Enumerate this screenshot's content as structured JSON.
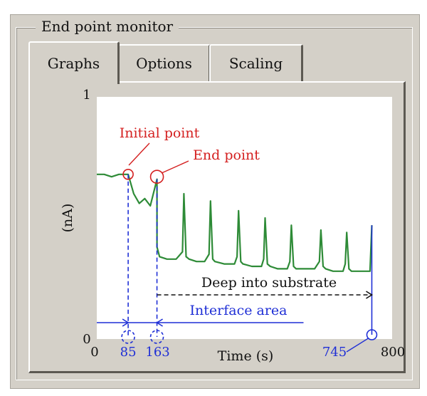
{
  "window": {
    "group_title": "End point monitor"
  },
  "tabs": [
    {
      "label": "Graphs",
      "active": true
    },
    {
      "label": "Options",
      "active": false
    },
    {
      "label": "Scaling",
      "active": false
    }
  ],
  "chart_data": {
    "type": "line",
    "xlabel": "Time (s)",
    "ylabel": "(nA)",
    "xlim": [
      0,
      800
    ],
    "ylim": [
      0,
      1
    ],
    "x_tick_labels": [
      "0",
      "800"
    ],
    "y_tick_labels": [
      "0",
      "1"
    ],
    "series": [
      {
        "color": "#2e8b37",
        "x": [
          0,
          20,
          40,
          60,
          80,
          85,
          100,
          115,
          130,
          145,
          163,
          163,
          170,
          190,
          215,
          232,
          236,
          242,
          250,
          270,
          292,
          304,
          308,
          314,
          320,
          345,
          373,
          380,
          384,
          390,
          396,
          420,
          446,
          452,
          456,
          462,
          470,
          490,
          516,
          523,
          527,
          533,
          540,
          560,
          590,
          603,
          607,
          613,
          620,
          640,
          667,
          673,
          677,
          683,
          690,
          710,
          740,
          745
        ],
        "y": [
          0.68,
          0.68,
          0.67,
          0.68,
          0.68,
          0.68,
          0.6,
          0.56,
          0.58,
          0.55,
          0.66,
          0.38,
          0.34,
          0.33,
          0.33,
          0.36,
          0.6,
          0.34,
          0.33,
          0.32,
          0.32,
          0.35,
          0.57,
          0.33,
          0.32,
          0.31,
          0.31,
          0.34,
          0.53,
          0.32,
          0.31,
          0.3,
          0.3,
          0.33,
          0.5,
          0.31,
          0.3,
          0.29,
          0.29,
          0.32,
          0.47,
          0.3,
          0.29,
          0.29,
          0.29,
          0.32,
          0.45,
          0.3,
          0.29,
          0.28,
          0.28,
          0.31,
          0.44,
          0.29,
          0.28,
          0.28,
          0.28,
          0.47
        ]
      }
    ],
    "annotations": [
      {
        "label": "Initial point",
        "x": 85,
        "color": "#d42020"
      },
      {
        "label": "End point",
        "x": 163,
        "color": "#d42020"
      },
      {
        "label": "Deep into substrate",
        "from": 163,
        "to": 745,
        "color": "#111111"
      },
      {
        "label": "Interface area",
        "from": 0,
        "to": 560,
        "color": "#1f2fd6"
      }
    ],
    "marked_times": [
      "85",
      "163",
      "745"
    ],
    "colors": {
      "signal": "#2e8b37",
      "callout": "#d42020",
      "marker": "#1f2fd6"
    }
  }
}
